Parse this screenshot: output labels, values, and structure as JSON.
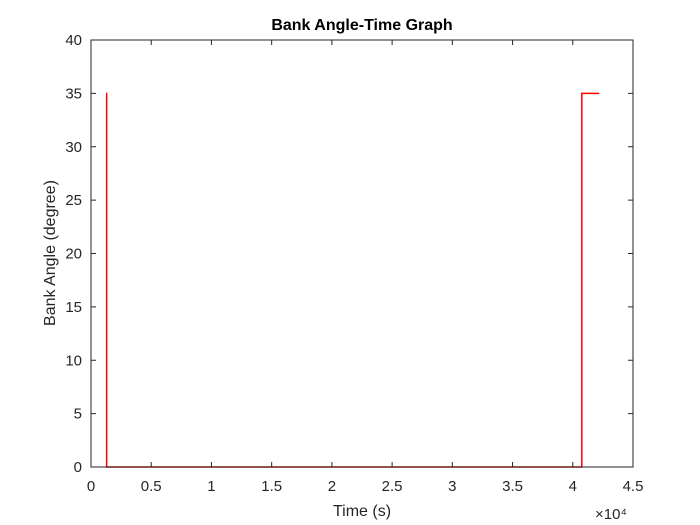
{
  "chart_data": {
    "type": "line",
    "title": "Bank Angle-Time Graph",
    "xlabel": "Time (s)",
    "ylabel": "Bank Angle (degree)",
    "x_exponent_label": "×10⁴",
    "xlim": [
      0,
      45000
    ],
    "ylim": [
      0,
      40
    ],
    "x_ticks": [
      0,
      5000,
      10000,
      15000,
      20000,
      25000,
      30000,
      35000,
      40000,
      45000
    ],
    "x_tick_labels": [
      "0",
      "0.5",
      "1",
      "1.5",
      "2",
      "2.5",
      "3",
      "3.5",
      "4",
      "4.5"
    ],
    "y_ticks": [
      0,
      5,
      10,
      15,
      20,
      25,
      30,
      35,
      40
    ],
    "y_tick_labels": [
      "0",
      "5",
      "10",
      "15",
      "20",
      "25",
      "30",
      "35",
      "40"
    ],
    "grid": false,
    "line_color": "#ff0000",
    "series": [
      {
        "x": [
          1250,
          1300,
          1300,
          40700,
          40750,
          40750,
          42200
        ],
        "y": [
          35,
          35,
          0,
          0,
          0,
          35,
          35
        ]
      }
    ]
  }
}
